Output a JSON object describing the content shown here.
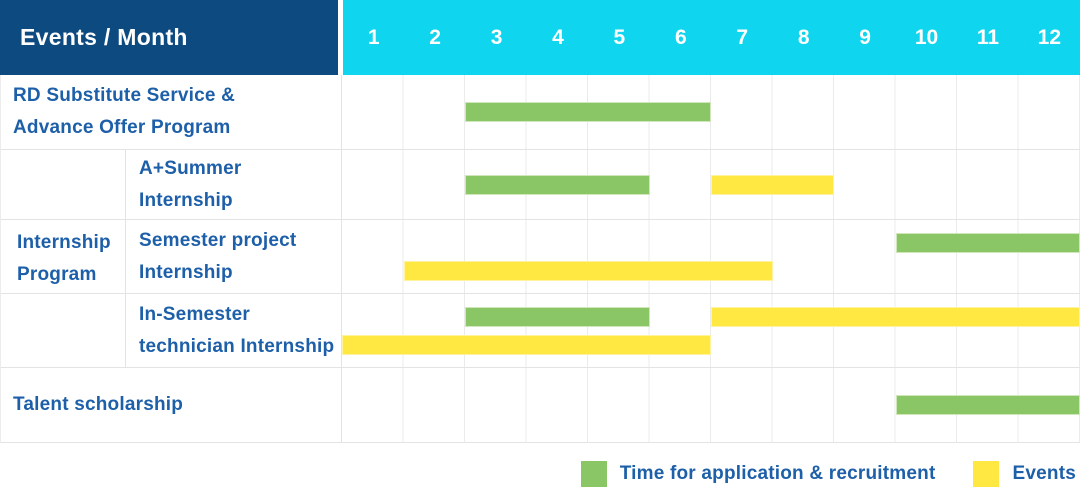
{
  "header": {
    "title": "Events / Month",
    "months": [
      "1",
      "2",
      "3",
      "4",
      "5",
      "6",
      "7",
      "8",
      "9",
      "10",
      "11",
      "12"
    ]
  },
  "colors": {
    "navy": "#0d4a80",
    "cyan": "#10d5ee",
    "green": "#8ac566",
    "yellow": "#ffe842",
    "label_blue": "#1d5fa8"
  },
  "group": {
    "label": "Internship\nProgram"
  },
  "rows": [
    {
      "id": "rd-substitute",
      "label": "RD Substitute Service &\nAdvance Offer Program",
      "in_group": false,
      "bars": [
        {
          "type": "recruitment",
          "color": "green",
          "start_month": 3,
          "end_month": 6,
          "lane": "center"
        }
      ]
    },
    {
      "id": "a-summer-internship",
      "label": "A+Summer\nInternship",
      "in_group": true,
      "bars": [
        {
          "type": "recruitment",
          "color": "green",
          "start_month": 3,
          "end_month": 5,
          "lane": "center"
        },
        {
          "type": "event",
          "color": "yellow",
          "start_month": 7,
          "end_month": 8,
          "lane": "center"
        }
      ]
    },
    {
      "id": "semester-project-internship",
      "label": "Semester project\nInternship",
      "in_group": true,
      "bars": [
        {
          "type": "recruitment",
          "color": "green",
          "start_month": 10,
          "end_month": 12,
          "lane": "top"
        },
        {
          "type": "event",
          "color": "yellow",
          "start_month": 2,
          "end_month": 7,
          "lane": "bottom"
        }
      ]
    },
    {
      "id": "in-semester-technician-internship",
      "label": "In-Semester\ntechnician Internship",
      "in_group": true,
      "bars": [
        {
          "type": "recruitment",
          "color": "green",
          "start_month": 3,
          "end_month": 5,
          "lane": "top"
        },
        {
          "type": "event",
          "color": "yellow",
          "start_month": 7,
          "end_month": 12,
          "lane": "top"
        },
        {
          "type": "event",
          "color": "yellow",
          "start_month": 1,
          "end_month": 6,
          "lane": "bottom"
        }
      ]
    },
    {
      "id": "talent-scholarship",
      "label": "Talent scholarship",
      "in_group": false,
      "bars": [
        {
          "type": "recruitment",
          "color": "green",
          "start_month": 10,
          "end_month": 12,
          "lane": "center"
        }
      ]
    }
  ],
  "legend": [
    {
      "color": "green",
      "label": "Time for application & recruitment"
    },
    {
      "color": "yellow",
      "label": "Events"
    }
  ],
  "chart_data": {
    "type": "bar",
    "subtype": "gantt",
    "title": "Events / Month",
    "xlabel": "Month",
    "x_ticks": [
      "1",
      "2",
      "3",
      "4",
      "5",
      "6",
      "7",
      "8",
      "9",
      "10",
      "11",
      "12"
    ],
    "x_range": [
      1,
      12
    ],
    "grid": true,
    "legend_position": "bottom-right",
    "legend_entries": [
      "Time for application & recruitment",
      "Events"
    ],
    "series": [
      {
        "name": "RD Substitute Service & Advance Offer Program",
        "group": null,
        "segments": [
          {
            "kind": "Time for application & recruitment",
            "months": [
              3,
              6
            ]
          }
        ]
      },
      {
        "name": "A+Summer Internship",
        "group": "Internship Program",
        "segments": [
          {
            "kind": "Time for application & recruitment",
            "months": [
              3,
              5
            ]
          },
          {
            "kind": "Events",
            "months": [
              7,
              8
            ]
          }
        ]
      },
      {
        "name": "Semester project Internship",
        "group": "Internship Program",
        "segments": [
          {
            "kind": "Time for application & recruitment",
            "months": [
              10,
              12
            ]
          },
          {
            "kind": "Events",
            "months": [
              2,
              7
            ]
          }
        ]
      },
      {
        "name": "In-Semester technician Internship",
        "group": "Internship Program",
        "segments": [
          {
            "kind": "Time for application & recruitment",
            "months": [
              3,
              5
            ]
          },
          {
            "kind": "Events",
            "months": [
              7,
              12
            ]
          },
          {
            "kind": "Events",
            "months": [
              1,
              6
            ]
          }
        ]
      },
      {
        "name": "Talent scholarship",
        "group": null,
        "segments": [
          {
            "kind": "Time for application & recruitment",
            "months": [
              10,
              12
            ]
          }
        ]
      }
    ]
  }
}
